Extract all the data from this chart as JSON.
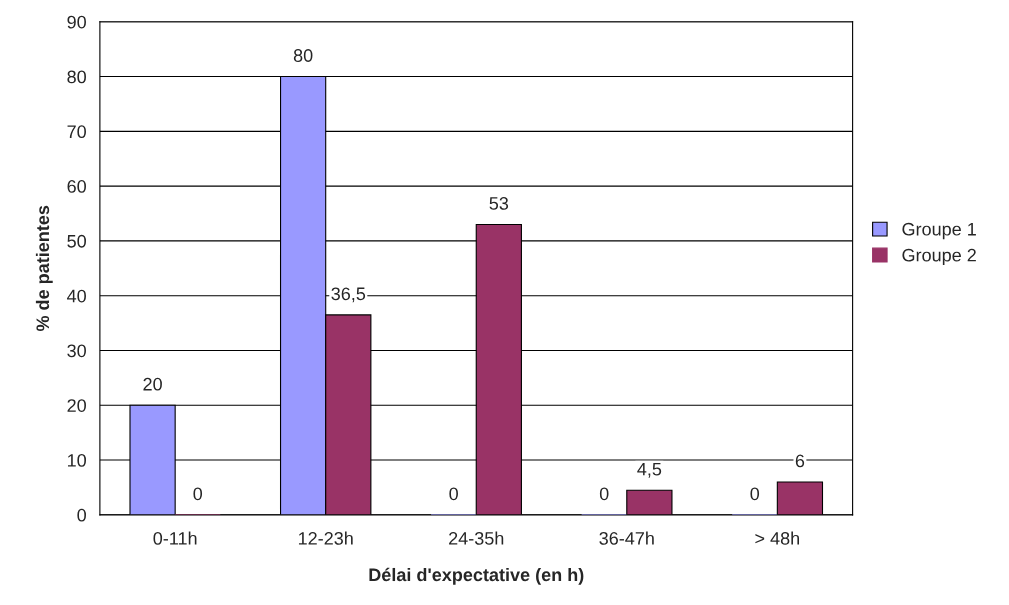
{
  "chart_data": {
    "type": "bar",
    "xlabel": "Délai d'expectative (en h)",
    "ylabel": "% de patientes",
    "categories": [
      "0-11h",
      "12-23h",
      "24-35h",
      "36-47h",
      "> 48h"
    ],
    "series": [
      {
        "name": "Groupe 1",
        "color": "#9999ff",
        "values": [
          20,
          80,
          0,
          0,
          0
        ],
        "value_labels": [
          "20",
          "80",
          "0",
          "0",
          "0"
        ]
      },
      {
        "name": "Groupe 2",
        "color": "#993366",
        "values": [
          0,
          36.5,
          53,
          4.5,
          6
        ],
        "value_labels": [
          "0",
          "36,5",
          "53",
          "4,5",
          "6"
        ]
      }
    ],
    "ylim": [
      0,
      90
    ],
    "yticks": [
      0,
      10,
      20,
      30,
      40,
      50,
      60,
      70,
      80,
      90
    ],
    "grid": "y",
    "legend": "right"
  }
}
